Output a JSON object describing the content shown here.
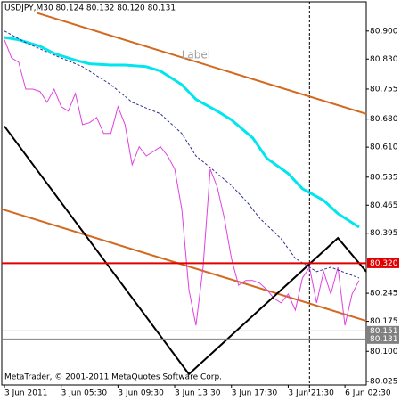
{
  "chart_data": {
    "type": "line",
    "title": "USDJPY,M30  80.124 80.132 80.120 80.131",
    "footer": "MetaTrader, © 2001-2011 MetaQuotes Software Corp.",
    "xlim": [
      -0.375,
      51
    ],
    "xticks": [
      {
        "value": 0,
        "label": "3 Jun 2011"
      },
      {
        "value": 8,
        "label": "3 Jun 05:30"
      },
      {
        "value": 16,
        "label": "3 Jun 09:30"
      },
      {
        "value": 24,
        "label": "3 Jun 13:30"
      },
      {
        "value": 32,
        "label": "3 Jun 17:30"
      },
      {
        "value": 40,
        "label": "3 Jun 21:30"
      },
      {
        "value": 48,
        "label": "6 Jun 02:30"
      }
    ],
    "ylim": [
      80.016,
      80.973
    ],
    "yticks": [
      {
        "value": 80.9,
        "label": "80.900"
      },
      {
        "value": 80.83,
        "label": "80.830"
      },
      {
        "value": 80.755,
        "label": "80.755"
      },
      {
        "value": 80.68,
        "label": "80.680"
      },
      {
        "value": 80.61,
        "label": "80.610"
      },
      {
        "value": 80.535,
        "label": "80.535"
      },
      {
        "value": 80.465,
        "label": "80.465"
      },
      {
        "value": 80.395,
        "label": "80.395"
      },
      {
        "value": 80.245,
        "label": "80.245"
      },
      {
        "value": 80.175,
        "label": "80.175"
      },
      {
        "value": 80.1,
        "label": "80.100"
      },
      {
        "value": 80.025,
        "label": "80.025"
      }
    ],
    "series": [
      {
        "color": "#d2691e",
        "width": 2,
        "x": [
          4.6,
          51
        ],
        "values": [
          80.945,
          80.693
        ]
      },
      {
        "color": "#d2691e",
        "width": 2,
        "x": [
          -0.375,
          51
        ],
        "values": [
          80.455,
          80.176
        ]
      },
      {
        "color": "#e040e0",
        "width": 1,
        "x": [
          0,
          1,
          2,
          3,
          4,
          5,
          6,
          7,
          8,
          9,
          10,
          11,
          12,
          13,
          14,
          15,
          16,
          17,
          18,
          19,
          20,
          21,
          22,
          23,
          24,
          25,
          26,
          27,
          28,
          29,
          30,
          31,
          32,
          33,
          34,
          35,
          36,
          37,
          38,
          39,
          40,
          41,
          42,
          43,
          44,
          45,
          46,
          47,
          48,
          49,
          50
        ],
        "values": [
          80.878,
          80.833,
          80.822,
          80.755,
          80.755,
          80.749,
          80.722,
          80.755,
          80.711,
          80.7,
          80.744,
          80.666,
          80.671,
          80.684,
          80.644,
          80.644,
          80.711,
          80.666,
          80.566,
          80.611,
          80.588,
          80.599,
          80.611,
          80.588,
          80.555,
          80.455,
          80.254,
          80.165,
          80.31,
          80.555,
          80.51,
          80.432,
          80.332,
          80.265,
          80.277,
          80.277,
          80.27,
          80.254,
          80.232,
          80.221,
          80.243,
          80.203,
          80.283,
          80.31,
          80.221,
          80.299,
          80.243,
          80.31,
          80.165,
          80.243,
          80.277
        ]
      },
      {
        "color": "#00e5ee",
        "width": 3,
        "x": [
          0,
          2,
          5,
          7,
          10,
          12,
          15,
          17,
          20,
          22,
          25,
          27,
          30,
          32,
          35,
          37,
          40,
          42,
          45,
          47,
          50
        ],
        "values": [
          80.884,
          80.878,
          80.862,
          80.844,
          80.827,
          80.818,
          80.815,
          80.815,
          80.811,
          80.8,
          80.766,
          80.729,
          80.7,
          80.678,
          80.633,
          80.582,
          80.544,
          80.506,
          80.477,
          80.444,
          80.41
        ]
      },
      {
        "color": "#303090",
        "width": 1,
        "dash": true,
        "x": [
          0,
          3,
          7,
          11,
          15,
          18,
          22,
          25,
          27,
          29,
          32,
          34,
          36,
          39,
          41,
          44,
          46,
          50
        ],
        "values": [
          80.9,
          80.871,
          80.84,
          80.811,
          80.766,
          80.722,
          80.693,
          80.644,
          80.588,
          80.559,
          80.514,
          80.477,
          80.432,
          80.381,
          80.332,
          80.299,
          80.31,
          80.283
        ]
      },
      {
        "color": "#000000",
        "width": 2,
        "x": [
          0,
          26,
          47,
          51
        ],
        "values": [
          80.662,
          80.043,
          80.383,
          80.299
        ]
      }
    ],
    "hlines": [
      {
        "value": 80.32,
        "label": "80.320",
        "color": "#e00000"
      },
      {
        "value": 80.151,
        "label": "80.151",
        "color": "#808080"
      },
      {
        "value": 80.131,
        "label": "80.131",
        "color": "#808080"
      }
    ],
    "vlines": [
      43
    ],
    "annotations": [
      {
        "text": "Label",
        "x": 27,
        "y": 80.84,
        "color": "#a0a0a0"
      }
    ]
  }
}
